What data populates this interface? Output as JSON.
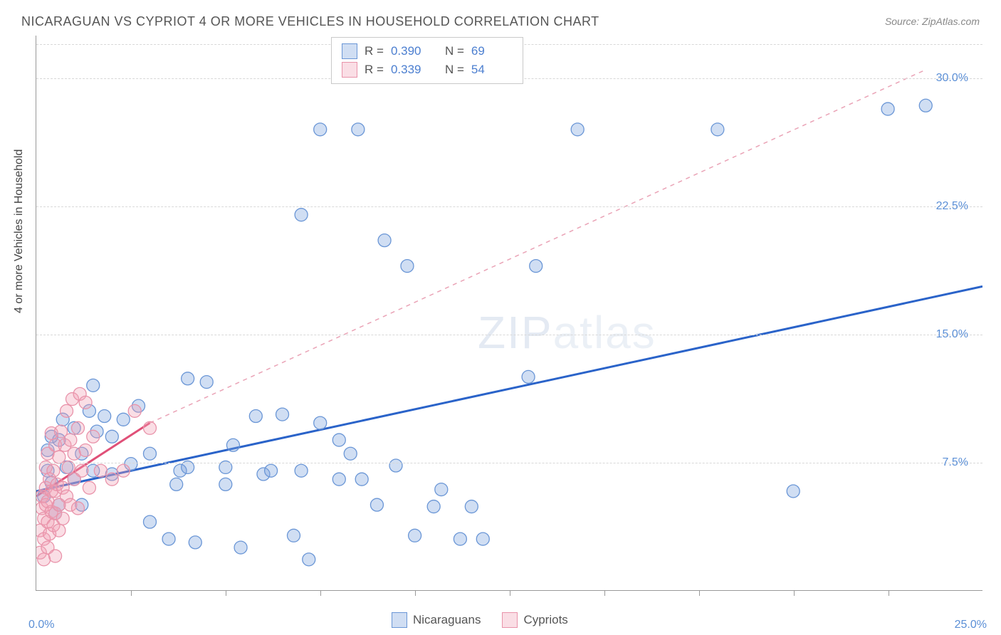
{
  "title": "NICARAGUAN VS CYPRIOT 4 OR MORE VEHICLES IN HOUSEHOLD CORRELATION CHART",
  "source": "Source: ZipAtlas.com",
  "y_axis_label": "4 or more Vehicles in Household",
  "watermark_a": "ZIP",
  "watermark_b": "atlas",
  "chart": {
    "type": "scatter",
    "background_color": "#ffffff",
    "grid_color": "#d8d8d8",
    "axis_color": "#999999",
    "xlim": [
      0,
      25
    ],
    "ylim": [
      0,
      32.5
    ],
    "x_tick_step": 2.5,
    "y_ticks": [
      7.5,
      15.0,
      22.5,
      30.0
    ],
    "y_tick_labels": [
      "7.5%",
      "15.0%",
      "22.5%",
      "30.0%"
    ],
    "x_start_label": "0.0%",
    "x_end_label": "25.0%",
    "marker_radius": 9,
    "marker_stroke_width": 1.3,
    "series": [
      {
        "name": "Nicaraguans",
        "color_fill": "rgba(120,160,220,0.35)",
        "color_stroke": "#6a96d6",
        "r": "0.390",
        "n": "69",
        "trend": {
          "x1": 0,
          "y1": 5.8,
          "x2": 25,
          "y2": 17.8,
          "dash": "none",
          "stroke": "#2a63c9",
          "width": 3,
          "ext_x1": 25,
          "ext_y1": 17.8,
          "ext_x2": 25,
          "ext_y2": 17.8
        },
        "points": [
          [
            0.2,
            5.5
          ],
          [
            0.3,
            7.0
          ],
          [
            0.3,
            8.2
          ],
          [
            0.4,
            6.3
          ],
          [
            0.4,
            9.0
          ],
          [
            0.5,
            4.5
          ],
          [
            0.6,
            5.0
          ],
          [
            0.6,
            8.8
          ],
          [
            0.7,
            10.0
          ],
          [
            0.8,
            7.2
          ],
          [
            1.0,
            6.5
          ],
          [
            1.0,
            9.5
          ],
          [
            1.2,
            5.0
          ],
          [
            1.2,
            8.0
          ],
          [
            1.4,
            10.5
          ],
          [
            1.5,
            7.0
          ],
          [
            1.5,
            12.0
          ],
          [
            1.6,
            9.3
          ],
          [
            1.8,
            10.2
          ],
          [
            2.0,
            6.8
          ],
          [
            2.0,
            9.0
          ],
          [
            2.3,
            10.0
          ],
          [
            2.5,
            7.4
          ],
          [
            2.7,
            10.8
          ],
          [
            3.0,
            8.0
          ],
          [
            3.0,
            4.0
          ],
          [
            3.5,
            3.0
          ],
          [
            3.7,
            6.2
          ],
          [
            3.8,
            7.0
          ],
          [
            4.0,
            12.4
          ],
          [
            4.0,
            7.2
          ],
          [
            4.2,
            2.8
          ],
          [
            4.5,
            12.2
          ],
          [
            5.0,
            6.2
          ],
          [
            5.0,
            7.2
          ],
          [
            5.2,
            8.5
          ],
          [
            5.4,
            2.5
          ],
          [
            5.8,
            10.2
          ],
          [
            6.0,
            6.8
          ],
          [
            6.2,
            7.0
          ],
          [
            6.5,
            10.3
          ],
          [
            6.8,
            3.2
          ],
          [
            7.0,
            7.0
          ],
          [
            7.0,
            22.0
          ],
          [
            7.2,
            1.8
          ],
          [
            7.5,
            27.0
          ],
          [
            7.5,
            9.8
          ],
          [
            8.0,
            6.5
          ],
          [
            8.0,
            8.8
          ],
          [
            8.3,
            8.0
          ],
          [
            8.5,
            27.0
          ],
          [
            8.6,
            6.5
          ],
          [
            9.0,
            5.0
          ],
          [
            9.2,
            20.5
          ],
          [
            9.5,
            7.3
          ],
          [
            9.8,
            19.0
          ],
          [
            10.0,
            3.2
          ],
          [
            10.5,
            4.9
          ],
          [
            10.7,
            5.9
          ],
          [
            11.2,
            3.0
          ],
          [
            11.5,
            4.9
          ],
          [
            11.8,
            3.0
          ],
          [
            13.0,
            12.5
          ],
          [
            13.2,
            19.0
          ],
          [
            14.3,
            27.0
          ],
          [
            18.0,
            27.0
          ],
          [
            20.0,
            5.8
          ],
          [
            22.5,
            28.2
          ],
          [
            23.5,
            28.4
          ]
        ]
      },
      {
        "name": "Cypriots",
        "color_fill": "rgba(240,160,180,0.35)",
        "color_stroke": "#e993aa",
        "r": "0.339",
        "n": "54",
        "trend": {
          "x1": 0,
          "y1": 5.5,
          "x2": 3.0,
          "y2": 9.8,
          "dash": "none",
          "stroke": "#e05078",
          "width": 3,
          "ext_x1": 3.0,
          "ext_y1": 9.8,
          "ext_x2": 23.5,
          "ext_y2": 30.5,
          "ext_dash": "6 6",
          "ext_stroke": "#eaa3b6",
          "ext_width": 1.5
        },
        "points": [
          [
            0.1,
            2.2
          ],
          [
            0.1,
            3.5
          ],
          [
            0.15,
            4.8
          ],
          [
            0.15,
            5.5
          ],
          [
            0.2,
            1.8
          ],
          [
            0.2,
            3.0
          ],
          [
            0.2,
            4.2
          ],
          [
            0.25,
            5.0
          ],
          [
            0.25,
            6.0
          ],
          [
            0.25,
            7.2
          ],
          [
            0.3,
            2.5
          ],
          [
            0.3,
            4.0
          ],
          [
            0.3,
            5.2
          ],
          [
            0.3,
            8.0
          ],
          [
            0.35,
            3.3
          ],
          [
            0.35,
            6.5
          ],
          [
            0.4,
            4.6
          ],
          [
            0.4,
            5.8
          ],
          [
            0.4,
            9.2
          ],
          [
            0.45,
            3.8
          ],
          [
            0.45,
            7.0
          ],
          [
            0.5,
            2.0
          ],
          [
            0.5,
            4.5
          ],
          [
            0.5,
            5.8
          ],
          [
            0.5,
            8.5
          ],
          [
            0.55,
            6.2
          ],
          [
            0.6,
            3.5
          ],
          [
            0.6,
            5.0
          ],
          [
            0.6,
            7.8
          ],
          [
            0.65,
            9.3
          ],
          [
            0.7,
            4.2
          ],
          [
            0.7,
            6.0
          ],
          [
            0.75,
            8.5
          ],
          [
            0.8,
            5.5
          ],
          [
            0.8,
            10.5
          ],
          [
            0.85,
            7.2
          ],
          [
            0.9,
            5.0
          ],
          [
            0.9,
            8.8
          ],
          [
            0.95,
            11.2
          ],
          [
            1.0,
            6.5
          ],
          [
            1.0,
            8.0
          ],
          [
            1.1,
            4.8
          ],
          [
            1.1,
            9.5
          ],
          [
            1.15,
            11.5
          ],
          [
            1.2,
            7.0
          ],
          [
            1.3,
            8.2
          ],
          [
            1.3,
            11.0
          ],
          [
            1.4,
            6.0
          ],
          [
            1.5,
            9.0
          ],
          [
            1.7,
            7.0
          ],
          [
            2.0,
            6.5
          ],
          [
            2.3,
            7.0
          ],
          [
            2.6,
            10.5
          ],
          [
            3.0,
            9.5
          ]
        ]
      }
    ]
  },
  "bottom_legend": [
    {
      "label": "Nicaraguans",
      "swatch": "blue"
    },
    {
      "label": "Cypriots",
      "swatch": "pink"
    }
  ]
}
